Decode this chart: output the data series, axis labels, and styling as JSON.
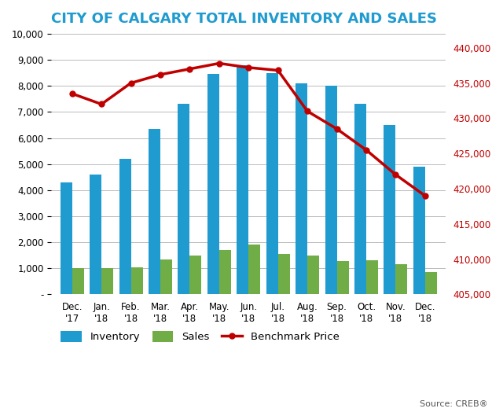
{
  "title": "CITY OF CALGARY TOTAL INVENTORY AND SALES",
  "categories": [
    "Dec.\n'17",
    "Jan.\n'18",
    "Feb.\n'18",
    "Mar.\n'18",
    "Apr.\n'18",
    "May.\n'18",
    "Jun.\n'18",
    "Jul.\n'18",
    "Aug.\n'18",
    "Sep.\n'18",
    "Oct.\n'18",
    "Nov.\n'18",
    "Dec.\n'18"
  ],
  "inventory": [
    4300,
    4600,
    5200,
    6350,
    7300,
    8450,
    8800,
    8500,
    8100,
    8000,
    7300,
    6500,
    4900
  ],
  "sales": [
    1000,
    1000,
    1050,
    1350,
    1500,
    1700,
    1900,
    1550,
    1500,
    1270,
    1300,
    1150,
    850
  ],
  "benchmark_price": [
    433500,
    432000,
    435000,
    436200,
    437000,
    437800,
    437200,
    436800,
    431000,
    428500,
    425500,
    422000,
    419000
  ],
  "inventory_color": "#1F9BCF",
  "sales_color": "#70AD47",
  "benchmark_color": "#C00000",
  "left_ylim": [
    0,
    10000
  ],
  "left_yticks": [
    0,
    1000,
    2000,
    3000,
    4000,
    5000,
    6000,
    7000,
    8000,
    9000,
    10000
  ],
  "right_ylim": [
    405000,
    442000
  ],
  "right_yticks": [
    405000,
    410000,
    415000,
    420000,
    425000,
    430000,
    435000,
    440000
  ],
  "source_text": "Source: CREB®",
  "title_color": "#1F9BCF",
  "background_color": "#FFFFFF"
}
